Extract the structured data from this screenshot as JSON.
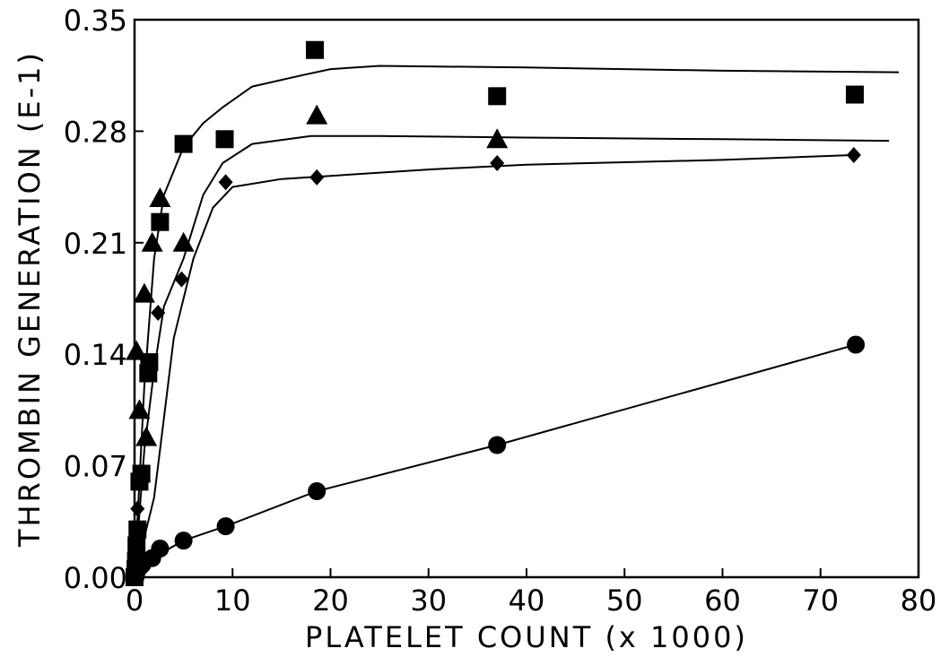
{
  "chart_data": {
    "type": "scatter",
    "title": "",
    "xlabel": "PLATELET COUNT (x 1000)",
    "ylabel": "THROMBIN GENERATION (E-1)",
    "xlim": [
      0,
      80
    ],
    "ylim": [
      0,
      0.35
    ],
    "x_ticks": [
      "0",
      "10",
      "20",
      "30",
      "40",
      "50",
      "60",
      "70",
      "80"
    ],
    "y_ticks": [
      "0.00",
      "0.07",
      "0.14",
      "0.21",
      "0.28",
      "0.35"
    ],
    "grid": false,
    "legend": "none",
    "series": [
      {
        "marker": "square",
        "points": [
          [
            0,
            0.0
          ],
          [
            0.1,
            0.005
          ],
          [
            0.15,
            0.01
          ],
          [
            0.2,
            0.02
          ],
          [
            0.3,
            0.03
          ],
          [
            0.5,
            0.06
          ],
          [
            0.7,
            0.065
          ],
          [
            1.4,
            0.128
          ],
          [
            1.5,
            0.135
          ],
          [
            2.6,
            0.223
          ],
          [
            5.0,
            0.272
          ],
          [
            9.2,
            0.275
          ],
          [
            18.4,
            0.331
          ],
          [
            37.0,
            0.302
          ],
          [
            73.5,
            0.303
          ]
        ],
        "curve": [
          [
            0,
            0.0
          ],
          [
            1,
            0.12
          ],
          [
            2,
            0.2
          ],
          [
            3,
            0.24
          ],
          [
            5,
            0.27
          ],
          [
            7,
            0.285
          ],
          [
            9,
            0.295
          ],
          [
            12,
            0.308
          ],
          [
            17,
            0.315
          ],
          [
            20,
            0.319
          ],
          [
            25,
            0.321
          ],
          [
            40,
            0.32
          ],
          [
            60,
            0.318
          ],
          [
            78,
            0.317
          ]
        ]
      },
      {
        "marker": "triangle",
        "points": [
          [
            0.2,
            0.142
          ],
          [
            0.5,
            0.105
          ],
          [
            1.0,
            0.178
          ],
          [
            1.2,
            0.088
          ],
          [
            1.8,
            0.21
          ],
          [
            2.6,
            0.238
          ],
          [
            5.0,
            0.21
          ],
          [
            18.6,
            0.29
          ],
          [
            37.0,
            0.275
          ]
        ],
        "curve": [
          [
            0,
            0.0
          ],
          [
            1,
            0.08
          ],
          [
            2,
            0.13
          ],
          [
            3,
            0.17
          ],
          [
            5,
            0.2
          ],
          [
            7,
            0.24
          ],
          [
            9,
            0.26
          ],
          [
            12,
            0.272
          ],
          [
            18,
            0.277
          ],
          [
            25,
            0.277
          ],
          [
            40,
            0.276
          ],
          [
            60,
            0.275
          ],
          [
            77,
            0.274
          ]
        ]
      },
      {
        "marker": "diamond",
        "points": [
          [
            0.3,
            0.043
          ],
          [
            2.4,
            0.166
          ],
          [
            4.8,
            0.187
          ],
          [
            9.3,
            0.248
          ],
          [
            18.6,
            0.251
          ],
          [
            37.0,
            0.26
          ],
          [
            73.4,
            0.265
          ]
        ],
        "curve": [
          [
            0,
            0.0
          ],
          [
            2,
            0.05
          ],
          [
            3,
            0.1
          ],
          [
            4,
            0.15
          ],
          [
            6,
            0.2
          ],
          [
            8,
            0.232
          ],
          [
            10,
            0.245
          ],
          [
            15,
            0.25
          ],
          [
            20,
            0.252
          ],
          [
            30,
            0.256
          ],
          [
            40,
            0.259
          ],
          [
            60,
            0.262
          ],
          [
            73,
            0.265
          ]
        ]
      },
      {
        "marker": "circle",
        "points": [
          [
            0.1,
            0.0
          ],
          [
            0.2,
            0.003
          ],
          [
            0.5,
            0.006
          ],
          [
            0.8,
            0.008
          ],
          [
            1.8,
            0.012
          ],
          [
            2.6,
            0.018
          ],
          [
            5.0,
            0.023
          ],
          [
            9.3,
            0.032
          ],
          [
            18.6,
            0.054
          ],
          [
            37.0,
            0.083
          ],
          [
            73.6,
            0.146
          ]
        ],
        "curve": [
          [
            0,
            0.0
          ],
          [
            1.8,
            0.012
          ],
          [
            5,
            0.023
          ],
          [
            9.3,
            0.032
          ],
          [
            18.6,
            0.054
          ],
          [
            37,
            0.083
          ],
          [
            73.6,
            0.146
          ]
        ]
      }
    ]
  }
}
